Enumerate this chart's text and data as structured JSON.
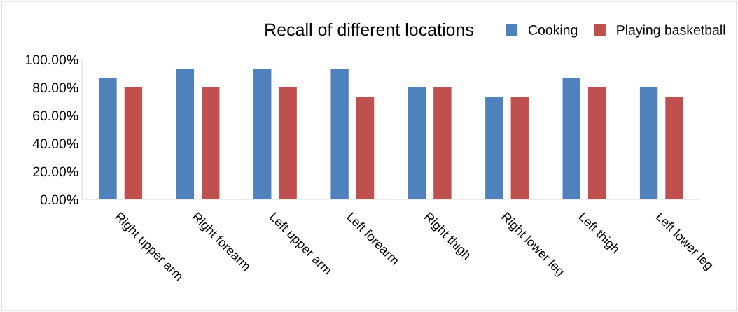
{
  "chart_data": {
    "type": "bar",
    "title": "Recall of different locations",
    "categories": [
      "Right upper arm",
      "Right forearm",
      "Left upper arm",
      "Left forearm",
      "Right thigh",
      "Right lower leg",
      "Left thigh",
      "Left lower leg"
    ],
    "series": [
      {
        "name": "Cooking",
        "color": "#4f81bd",
        "values": [
          86.7,
          93.3,
          93.3,
          93.3,
          80,
          73.3,
          86.7,
          80
        ]
      },
      {
        "name": "Playing basketball",
        "color": "#c0504d",
        "values": [
          80,
          80,
          80,
          73.3,
          80,
          73.3,
          80,
          73.3
        ]
      }
    ],
    "ylim": [
      0,
      100
    ],
    "yticks": [
      {
        "value": 0,
        "label": "0.00%"
      },
      {
        "value": 20,
        "label": "20.00%"
      },
      {
        "value": 40,
        "label": "40.00%"
      },
      {
        "value": 60,
        "label": "60.00%"
      },
      {
        "value": 80,
        "label": "80.00%"
      },
      {
        "value": 100,
        "label": "100.00%"
      }
    ],
    "grid": false,
    "legend": "top right"
  }
}
